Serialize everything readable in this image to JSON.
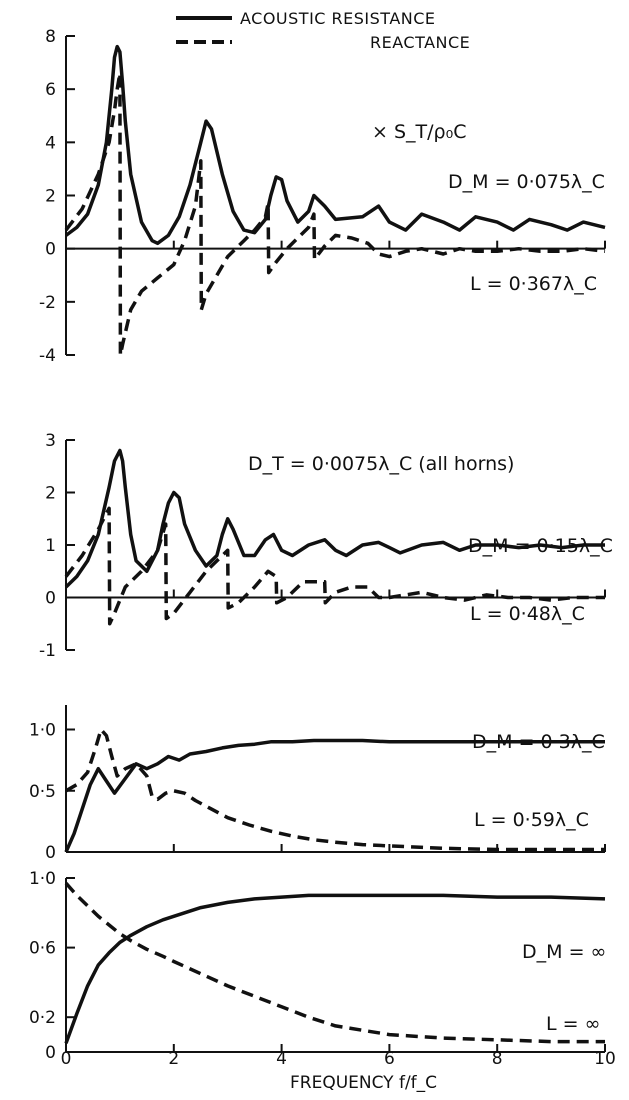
{
  "legend": {
    "solid_label": "ACOUSTIC RESISTANCE",
    "dashed_label": "REACTANCE",
    "solid_style": "solid",
    "dashed_style": "dashed"
  },
  "normalization": "× S_T/ρ₀C",
  "shared_annotation": "D_T = 0·0075λ_C (all horns)",
  "xlabel": "FREQUENCY  f/f_C",
  "colors": {
    "line": "#111111",
    "background": "#ffffff"
  },
  "chart_data": [
    {
      "type": "line",
      "panel": "D_M = 0·075λ_C, L = 0·367λ_C",
      "label_dm": "D_M = 0·075λ_C",
      "label_l": "L = 0·367λ_C",
      "ylim": [
        -4,
        8
      ],
      "yticks": [
        "-4",
        "-2",
        "0",
        "2",
        "4",
        "6",
        "8"
      ],
      "ytick_values": [
        -4,
        -2,
        0,
        2,
        4,
        6,
        8
      ],
      "series": [
        {
          "name": "ACOUSTIC RESISTANCE",
          "style": "solid",
          "x": [
            0,
            0.2,
            0.4,
            0.6,
            0.75,
            0.85,
            0.9,
            0.95,
            1.0,
            1.05,
            1.1,
            1.2,
            1.4,
            1.6,
            1.7,
            1.9,
            2.1,
            2.3,
            2.5,
            2.6,
            2.7,
            2.9,
            3.1,
            3.3,
            3.5,
            3.7,
            3.8,
            3.9,
            4.0,
            4.1,
            4.3,
            4.5,
            4.6,
            4.8,
            5.0,
            5.5,
            5.8,
            6.0,
            6.3,
            6.6,
            7.0,
            7.3,
            7.6,
            8.0,
            8.3,
            8.6,
            9.0,
            9.3,
            9.6,
            10.0
          ],
          "y": [
            0.5,
            0.8,
            1.3,
            2.4,
            4.0,
            6.0,
            7.2,
            7.6,
            7.4,
            6.2,
            4.8,
            2.8,
            1.0,
            0.3,
            0.2,
            0.5,
            1.2,
            2.4,
            4.0,
            4.8,
            4.5,
            2.8,
            1.4,
            0.7,
            0.6,
            1.1,
            2.0,
            2.7,
            2.6,
            1.8,
            1.0,
            1.4,
            2.0,
            1.6,
            1.1,
            1.2,
            1.6,
            1.0,
            0.7,
            1.3,
            1.0,
            0.7,
            1.2,
            1.0,
            0.7,
            1.1,
            0.9,
            0.7,
            1.0,
            0.8
          ]
        },
        {
          "name": "REACTANCE",
          "style": "dashed",
          "x": [
            0,
            0.3,
            0.6,
            0.8,
            0.9,
            0.95,
            1.0,
            1.01,
            1.05,
            1.2,
            1.4,
            1.7,
            2.0,
            2.2,
            2.4,
            2.5,
            2.51,
            2.6,
            2.8,
            3.0,
            3.3,
            3.5,
            3.7,
            3.75,
            3.76,
            3.9,
            4.1,
            4.3,
            4.5,
            4.6,
            4.61,
            4.8,
            5.0,
            5.3,
            5.6,
            5.8,
            6.0,
            6.3,
            6.6,
            7.0,
            7.3,
            7.6,
            8.0,
            8.4,
            8.8,
            9.2,
            9.6,
            10.0
          ],
          "y": [
            0.7,
            1.5,
            2.8,
            4.0,
            5.2,
            6.0,
            6.6,
            -4.0,
            -3.6,
            -2.3,
            -1.6,
            -1.1,
            -0.6,
            0.3,
            1.6,
            3.3,
            -2.3,
            -1.7,
            -1.0,
            -0.3,
            0.3,
            0.7,
            1.2,
            1.7,
            -0.9,
            -0.5,
            0.0,
            0.4,
            0.8,
            1.3,
            -0.4,
            0.1,
            0.5,
            0.4,
            0.2,
            -0.2,
            -0.3,
            -0.1,
            0.0,
            -0.2,
            0.0,
            -0.1,
            -0.1,
            0.0,
            -0.1,
            -0.1,
            0.0,
            -0.1
          ]
        }
      ]
    },
    {
      "type": "line",
      "panel": "D_M = 0·15λ_C, L = 0·48λ_C",
      "label_dm": "D_M = 0·15λ_C",
      "label_l": "L = 0·48λ_C",
      "ylim": [
        -1,
        3
      ],
      "yticks": [
        "-1",
        "0",
        "1",
        "2",
        "3"
      ],
      "ytick_values": [
        -1,
        0,
        1,
        2,
        3
      ],
      "series": [
        {
          "name": "ACOUSTIC RESISTANCE",
          "style": "solid",
          "x": [
            0,
            0.2,
            0.4,
            0.6,
            0.8,
            0.9,
            1.0,
            1.05,
            1.1,
            1.2,
            1.3,
            1.5,
            1.7,
            1.8,
            1.9,
            2.0,
            2.1,
            2.2,
            2.4,
            2.6,
            2.8,
            2.9,
            3.0,
            3.1,
            3.3,
            3.5,
            3.7,
            3.85,
            4.0,
            4.2,
            4.5,
            4.8,
            5.0,
            5.2,
            5.5,
            5.8,
            6.0,
            6.2,
            6.6,
            7.0,
            7.3,
            7.6,
            8.0,
            8.4,
            8.8,
            9.2,
            9.6,
            10.0
          ],
          "y": [
            0.2,
            0.4,
            0.7,
            1.2,
            2.1,
            2.6,
            2.8,
            2.6,
            2.1,
            1.2,
            0.7,
            0.5,
            0.9,
            1.4,
            1.8,
            2.0,
            1.9,
            1.4,
            0.9,
            0.6,
            0.8,
            1.2,
            1.5,
            1.3,
            0.8,
            0.8,
            1.1,
            1.2,
            0.9,
            0.8,
            1.0,
            1.1,
            0.9,
            0.8,
            1.0,
            1.05,
            0.95,
            0.85,
            1.0,
            1.05,
            0.9,
            1.0,
            1.0,
            0.95,
            1.0,
            0.95,
            1.0,
            1.0
          ]
        },
        {
          "name": "REACTANCE",
          "style": "dashed",
          "x": [
            0,
            0.3,
            0.6,
            0.75,
            0.8,
            0.81,
            0.9,
            1.1,
            1.4,
            1.7,
            1.85,
            1.86,
            2.0,
            2.3,
            2.6,
            2.9,
            3.0,
            3.01,
            3.2,
            3.5,
            3.75,
            3.9,
            3.91,
            4.1,
            4.4,
            4.6,
            4.8,
            4.81,
            5.0,
            5.3,
            5.6,
            5.8,
            6.0,
            6.3,
            6.6,
            7.0,
            7.4,
            7.8,
            8.2,
            8.6,
            9.0,
            9.4,
            10.0
          ],
          "y": [
            0.4,
            0.8,
            1.3,
            1.6,
            1.7,
            -0.5,
            -0.3,
            0.2,
            0.5,
            0.9,
            1.4,
            -0.4,
            -0.3,
            0.1,
            0.5,
            0.8,
            0.9,
            -0.2,
            -0.1,
            0.2,
            0.5,
            0.4,
            -0.1,
            0.0,
            0.3,
            0.3,
            0.3,
            -0.1,
            0.1,
            0.2,
            0.2,
            0.0,
            0.0,
            0.05,
            0.1,
            0.0,
            -0.05,
            0.05,
            0.0,
            0.0,
            -0.05,
            0.0,
            0.0
          ]
        }
      ]
    },
    {
      "type": "line",
      "panel": "D_M = 0·3λ_C, L = 0·59λ_C",
      "label_dm": "D_M = 0·3λ_C",
      "label_l": "L = 0·59λ_C",
      "ylim": [
        0,
        1.2
      ],
      "yticks": [
        "0",
        "0·5",
        "1·0"
      ],
      "ytick_values": [
        0,
        0.5,
        1.0
      ],
      "series": [
        {
          "name": "ACOUSTIC RESISTANCE",
          "style": "solid",
          "x": [
            0,
            0.15,
            0.3,
            0.45,
            0.6,
            0.75,
            0.9,
            1.1,
            1.3,
            1.5,
            1.7,
            1.9,
            2.1,
            2.3,
            2.6,
            2.9,
            3.2,
            3.5,
            3.8,
            4.2,
            4.6,
            5.0,
            5.5,
            6.0,
            7.0,
            8.0,
            9.0,
            10.0
          ],
          "y": [
            0.0,
            0.15,
            0.35,
            0.55,
            0.68,
            0.58,
            0.48,
            0.6,
            0.72,
            0.68,
            0.72,
            0.78,
            0.75,
            0.8,
            0.82,
            0.85,
            0.87,
            0.88,
            0.9,
            0.9,
            0.91,
            0.91,
            0.91,
            0.9,
            0.9,
            0.9,
            0.9,
            0.9
          ]
        },
        {
          "name": "REACTANCE",
          "style": "dashed",
          "x": [
            0,
            0.2,
            0.4,
            0.55,
            0.65,
            0.75,
            0.85,
            0.95,
            1.1,
            1.3,
            1.5,
            1.6,
            1.7,
            1.85,
            2.0,
            2.2,
            2.4,
            2.7,
            3.0,
            3.4,
            3.8,
            4.2,
            4.6,
            5.0,
            5.5,
            6.0,
            7.0,
            8.0,
            9.0,
            10.0
          ],
          "y": [
            0.5,
            0.55,
            0.65,
            0.85,
            1.0,
            0.95,
            0.78,
            0.62,
            0.68,
            0.72,
            0.62,
            0.45,
            0.43,
            0.48,
            0.5,
            0.48,
            0.42,
            0.35,
            0.28,
            0.22,
            0.17,
            0.13,
            0.1,
            0.08,
            0.06,
            0.05,
            0.03,
            0.02,
            0.02,
            0.02
          ]
        }
      ]
    },
    {
      "type": "line",
      "panel": "D_M = ∞, L = ∞",
      "label_dm": "D_M = ∞",
      "label_l": "L = ∞",
      "ylim": [
        0,
        1.0
      ],
      "yticks": [
        "0",
        "0·2",
        "0·6",
        "1·0"
      ],
      "ytick_values": [
        0,
        0.2,
        0.6,
        1.0
      ],
      "series": [
        {
          "name": "ACOUSTIC RESISTANCE",
          "style": "solid",
          "x": [
            0,
            0.2,
            0.4,
            0.6,
            0.8,
            1.0,
            1.2,
            1.5,
            1.8,
            2.0,
            2.5,
            3.0,
            3.5,
            4.0,
            4.5,
            5.0,
            6.0,
            7.0,
            8.0,
            9.0,
            10.0
          ],
          "y": [
            0.05,
            0.22,
            0.38,
            0.5,
            0.57,
            0.63,
            0.67,
            0.72,
            0.76,
            0.78,
            0.83,
            0.86,
            0.88,
            0.89,
            0.9,
            0.9,
            0.9,
            0.9,
            0.89,
            0.89,
            0.88
          ]
        },
        {
          "name": "REACTANCE",
          "style": "dashed",
          "x": [
            0,
            0.2,
            0.4,
            0.6,
            0.8,
            1.0,
            1.2,
            1.5,
            1.8,
            2.0,
            2.5,
            3.0,
            3.5,
            4.0,
            4.5,
            5.0,
            6.0,
            7.0,
            8.0,
            9.0,
            10.0
          ],
          "y": [
            0.97,
            0.9,
            0.84,
            0.78,
            0.73,
            0.68,
            0.64,
            0.59,
            0.55,
            0.52,
            0.45,
            0.38,
            0.32,
            0.26,
            0.2,
            0.15,
            0.1,
            0.08,
            0.07,
            0.06,
            0.06
          ]
        }
      ]
    }
  ],
  "x_axis": {
    "tick_labels": [
      "0",
      "2",
      "4",
      "6",
      "8",
      "10"
    ],
    "tick_positions": [
      0,
      2,
      4,
      6,
      8,
      10
    ],
    "xlim": [
      0,
      10
    ]
  }
}
